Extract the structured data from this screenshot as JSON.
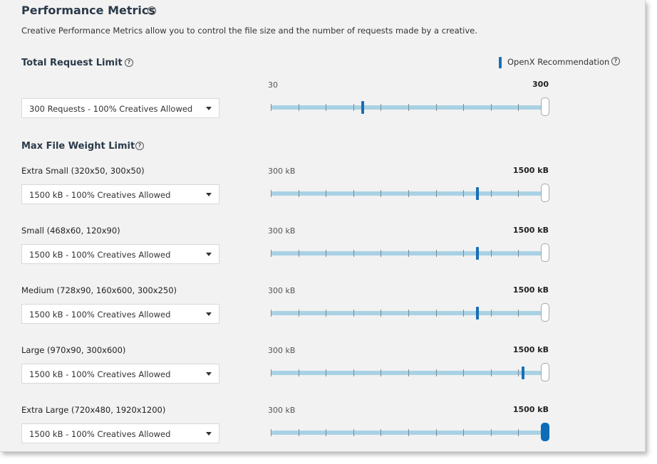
{
  "header": {
    "title": "Performance Metrics",
    "help_icon": "question-circle-icon",
    "description": "Creative Performance Metrics allow you to control the file size and the number of requests made by a creative."
  },
  "legend": {
    "label": "OpenX Recommendation",
    "color": "#1a6fb5",
    "help_icon": "question-circle-icon"
  },
  "request_limit": {
    "title": "Total Request Limit",
    "select_value": "300 Requests - 100% Creatives Allowed",
    "min_label": "30",
    "max_label": "300",
    "slider": {
      "min": 30,
      "max": 300,
      "value": 300,
      "recommended": 120
    }
  },
  "file_weight": {
    "title": "Max File Weight Limit",
    "rows": [
      {
        "label": "Extra Small (320x50, 300x50)",
        "select_value": "1500 kB - 100% Creatives Allowed",
        "min_label": "300 kB",
        "max_label": "1500 kB",
        "slider": {
          "min": 300,
          "max": 1500,
          "value": 1500,
          "recommended": 1200
        }
      },
      {
        "label": "Small (468x60, 120x90)",
        "select_value": "1500 kB - 100% Creatives Allowed",
        "min_label": "300 kB",
        "max_label": "1500 kB",
        "slider": {
          "min": 300,
          "max": 1500,
          "value": 1500,
          "recommended": 1200
        }
      },
      {
        "label": "Medium (728x90, 160x600, 300x250)",
        "select_value": "1500 kB - 100% Creatives Allowed",
        "min_label": "300 kB",
        "max_label": "1500 kB",
        "slider": {
          "min": 300,
          "max": 1500,
          "value": 1500,
          "recommended": 1200
        }
      },
      {
        "label": "Large (970x90, 300x600)",
        "select_value": "1500 kB - 100% Creatives Allowed",
        "min_label": "300 kB",
        "max_label": "1500 kB",
        "slider": {
          "min": 300,
          "max": 1500,
          "value": 1500,
          "recommended": 1400
        }
      },
      {
        "label": "Extra Large (720x480, 1920x1200)",
        "select_value": "1500 kB - 100% Creatives Allowed",
        "min_label": "300 kB",
        "max_label": "1500 kB",
        "slider": {
          "min": 300,
          "max": 1500,
          "value": 1500,
          "recommended": 1500
        }
      }
    ]
  }
}
